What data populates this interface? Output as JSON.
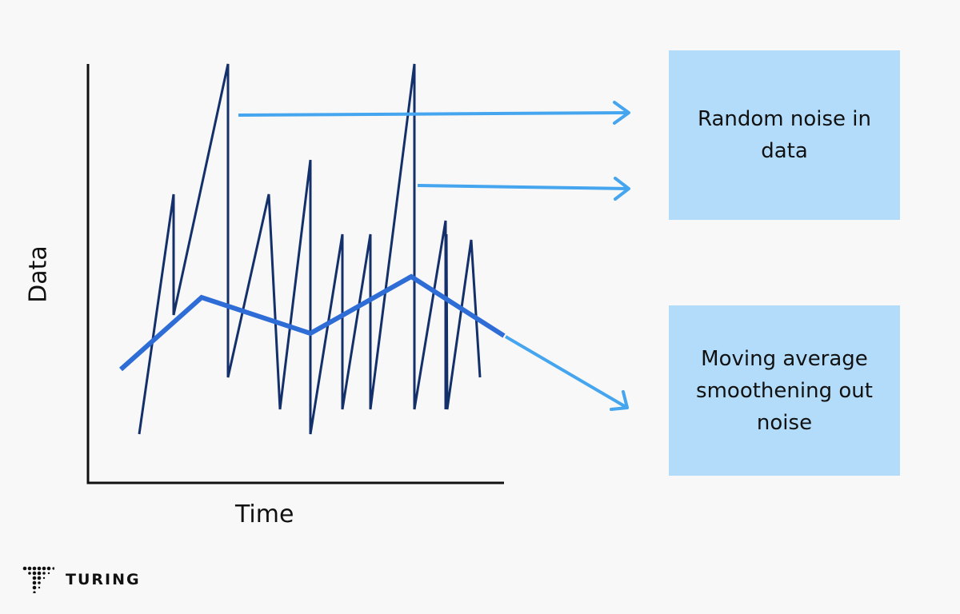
{
  "labels": {
    "xlabel": "Time",
    "ylabel": "Data"
  },
  "annotations": {
    "noise_box": "Random noise in data",
    "moving_average_box": "Moving average smoothening out noise"
  },
  "brand": {
    "name": "TURING"
  },
  "colors": {
    "noise_line": "#14306a",
    "moving_average_line": "#2e6cd6",
    "arrow": "#45a5ef",
    "box_fill": "#b3dcfa",
    "axis": "#111111",
    "background": "#f8f8f8"
  }
}
